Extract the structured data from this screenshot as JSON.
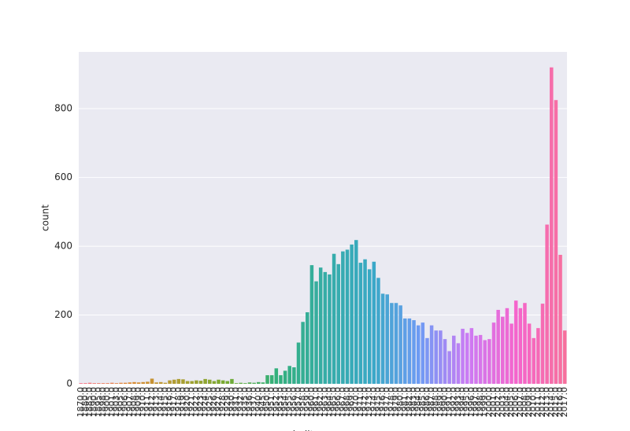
{
  "chart_data": {
    "type": "bar",
    "x_label": "built",
    "y_label": "count",
    "categories": [
      "1870.0",
      "1880.0",
      "1885.0",
      "1890.0",
      "1895.0",
      "1898.0",
      "1900.0",
      "1901.0",
      "1903.0",
      "1905.0",
      "1906.0",
      "1907.0",
      "1908.0",
      "1909.0",
      "1910.0",
      "1911.0",
      "1912.0",
      "1913.0",
      "1914.0",
      "1915.0",
      "1916.0",
      "1917.0",
      "1918.0",
      "1919.0",
      "1920.0",
      "1921.0",
      "1922.0",
      "1923.0",
      "1924.0",
      "1925.0",
      "1926.0",
      "1927.0",
      "1928.0",
      "1929.0",
      "1930.0",
      "1931.0",
      "1932.0",
      "1935.0",
      "1936.0",
      "1937.0",
      "1940.0",
      "1945.0",
      "1950.0",
      "1951.0",
      "1952.0",
      "1953.0",
      "1954.0",
      "1955.0",
      "1956.0",
      "1957.0",
      "1958.0",
      "1959.0",
      "1960.0",
      "1961.0",
      "1962.0",
      "1963.0",
      "1964.0",
      "1965.0",
      "1966.0",
      "1967.0",
      "1968.0",
      "1969.0",
      "1970.0",
      "1971.0",
      "1972.0",
      "1973.0",
      "1974.0",
      "1975.0",
      "1976.0",
      "1977.0",
      "1978.0",
      "1979.0",
      "1980.0",
      "1981.0",
      "1982.0",
      "1983.0",
      "1984.0",
      "1985.0",
      "1986.0",
      "1987.0",
      "1988.0",
      "1989.0",
      "1990.0",
      "1991.0",
      "1992.0",
      "1993.0",
      "1994.0",
      "1995.0",
      "1996.0",
      "1997.0",
      "1998.0",
      "1999.0",
      "2000.0",
      "2001.0",
      "2002.0",
      "2003.0",
      "2004.0",
      "2005.0",
      "2006.0",
      "2007.0",
      "2008.0",
      "2009.0",
      "2010.0",
      "2011.0",
      "2012.0",
      "2013.0",
      "2014.0",
      "2015.0",
      "2016.0",
      "2017.0"
    ],
    "values": [
      2,
      2,
      3,
      2,
      2,
      2,
      2,
      3,
      2,
      3,
      3,
      4,
      5,
      4,
      5,
      6,
      15,
      4,
      5,
      3,
      10,
      12,
      14,
      13,
      8,
      8,
      10,
      9,
      14,
      12,
      8,
      12,
      10,
      8,
      14,
      2,
      3,
      2,
      4,
      3,
      5,
      4,
      25,
      25,
      45,
      25,
      38,
      52,
      48,
      120,
      180,
      208,
      345,
      298,
      338,
      325,
      318,
      378,
      348,
      385,
      390,
      405,
      418,
      352,
      362,
      333,
      355,
      308,
      262,
      260,
      235,
      235,
      228,
      190,
      190,
      185,
      170,
      178,
      133,
      170,
      155,
      155,
      130,
      95,
      140,
      118,
      160,
      148,
      162,
      140,
      142,
      127,
      130,
      178,
      215,
      195,
      220,
      175,
      242,
      220,
      235,
      175,
      133,
      162,
      233,
      463,
      920,
      825,
      375,
      155
    ],
    "palette": [
      "#f77189",
      "#dc8932",
      "#ae9d31",
      "#77ab31",
      "#33b07a",
      "#36ada4",
      "#38a9c5",
      "#6e9bf4",
      "#cc7af4",
      "#f565cc",
      "#f7709d"
    ],
    "ylim": [
      0,
      965
    ],
    "yticks": [
      0,
      200,
      400,
      600,
      800
    ],
    "grid": true,
    "background": "#eaeaf2"
  }
}
